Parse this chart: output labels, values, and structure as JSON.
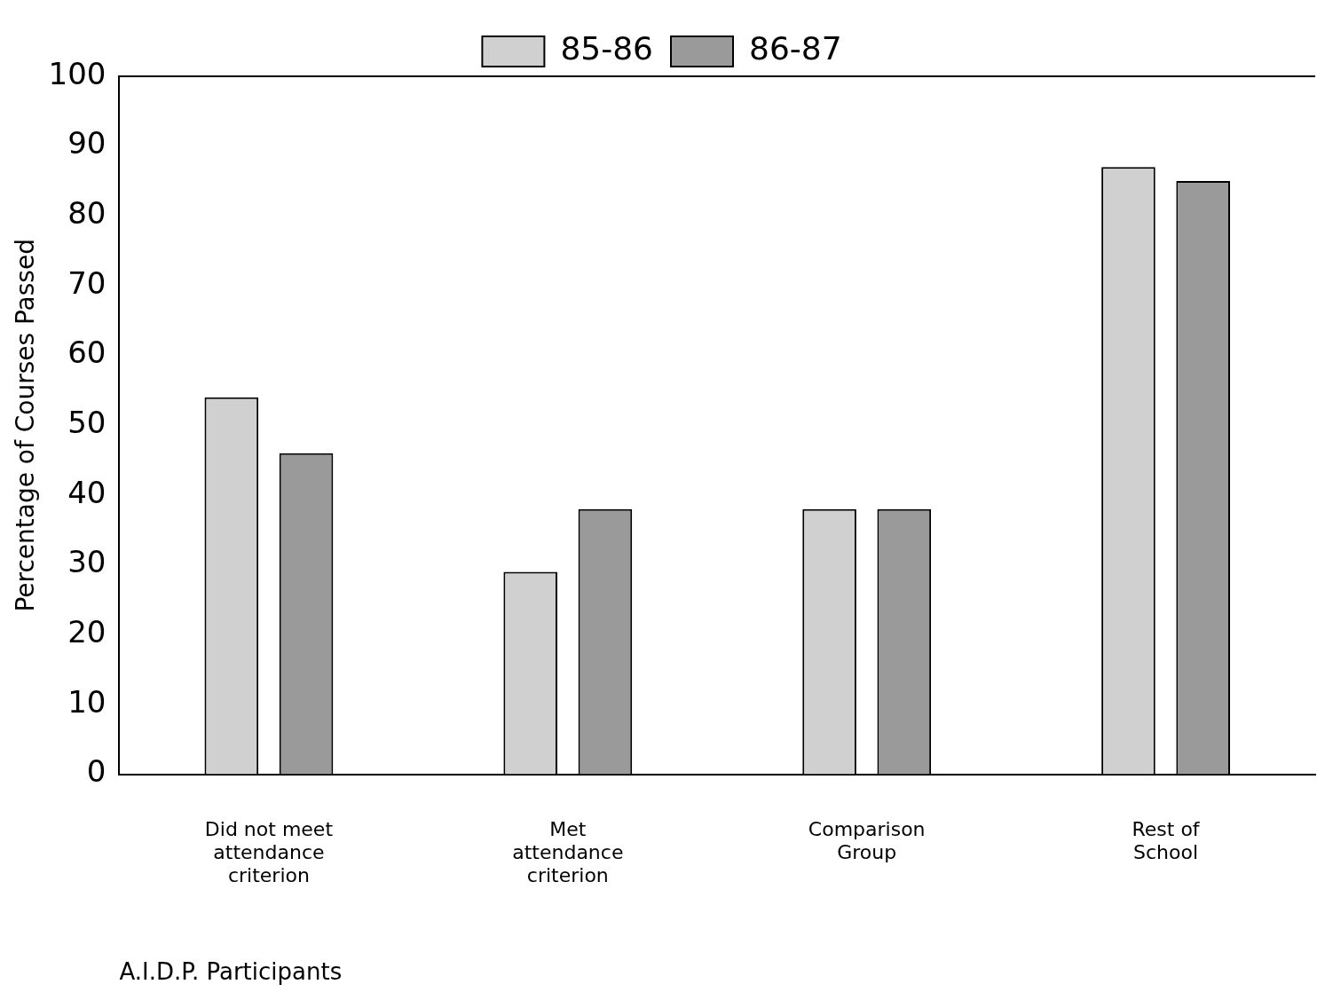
{
  "chart_data": {
    "type": "bar",
    "ylabel": "Percentage of Courses Passed",
    "xlabel": "A.I.D.P. Participants",
    "categories": [
      "Did not meet attendance criterion",
      "Met attendance criterion",
      "Comparison Group",
      "Rest of School"
    ],
    "series": [
      {
        "name": "85-86",
        "color": "#d0d0d0",
        "values": [
          54,
          29,
          38,
          87
        ]
      },
      {
        "name": "86-87",
        "color": "#9a9a9a",
        "values": [
          46,
          38,
          38,
          85
        ]
      }
    ],
    "ylim": [
      0,
      100
    ],
    "yticks": [
      0,
      10,
      20,
      30,
      40,
      50,
      60,
      70,
      80,
      90,
      100
    ],
    "grid": false,
    "legend": "top"
  }
}
